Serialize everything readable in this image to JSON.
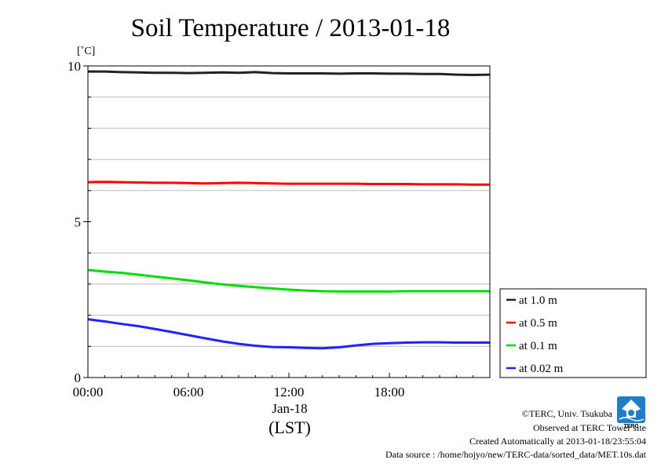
{
  "chart_data": {
    "type": "line",
    "title": "Soil Temperature / 2013-01-18",
    "ylabel": "[˚C]",
    "ylim": [
      0,
      10
    ],
    "y_ticks": [
      {
        "value": 0,
        "label": "0"
      },
      {
        "value": 5,
        "label": "5"
      },
      {
        "value": 10,
        "label": "10"
      }
    ],
    "y_grid": [
      1,
      2,
      3,
      4,
      6,
      7,
      8,
      9
    ],
    "xlim": [
      0,
      24
    ],
    "x_ticks": [
      {
        "value": 0,
        "label": "00:00"
      },
      {
        "value": 6,
        "label": "06:00"
      },
      {
        "value": 12,
        "label": "12:00"
      },
      {
        "value": 18,
        "label": "18:00"
      }
    ],
    "date_label": "Jan-18",
    "xlabel": "(LST)",
    "grid": true,
    "legend_position": "right",
    "series": [
      {
        "name": "at 1.0 m",
        "color": "#222222",
        "x": [
          0,
          1,
          2,
          3,
          4,
          5,
          6,
          7,
          8,
          9,
          10,
          11,
          12,
          13,
          14,
          15,
          16,
          17,
          18,
          19,
          20,
          21,
          22,
          23,
          24
        ],
        "y": [
          9.82,
          9.82,
          9.8,
          9.79,
          9.78,
          9.78,
          9.77,
          9.78,
          9.79,
          9.78,
          9.8,
          9.77,
          9.76,
          9.76,
          9.76,
          9.75,
          9.76,
          9.76,
          9.75,
          9.75,
          9.74,
          9.74,
          9.72,
          9.71,
          9.72
        ]
      },
      {
        "name": "at 0.5 m",
        "color": "#ff0000",
        "x": [
          0,
          1,
          2,
          3,
          4,
          5,
          6,
          7,
          8,
          9,
          10,
          11,
          12,
          13,
          14,
          15,
          16,
          17,
          18,
          19,
          20,
          21,
          22,
          23,
          24
        ],
        "y": [
          6.27,
          6.28,
          6.27,
          6.26,
          6.25,
          6.25,
          6.24,
          6.23,
          6.24,
          6.25,
          6.24,
          6.23,
          6.22,
          6.22,
          6.22,
          6.22,
          6.22,
          6.21,
          6.21,
          6.21,
          6.2,
          6.2,
          6.2,
          6.19,
          6.19
        ]
      },
      {
        "name": "at 0.1 m",
        "color": "#00dd00",
        "x": [
          0,
          1,
          2,
          3,
          4,
          5,
          6,
          7,
          8,
          9,
          10,
          11,
          12,
          13,
          14,
          15,
          16,
          17,
          18,
          19,
          20,
          21,
          22,
          23,
          24
        ],
        "y": [
          3.45,
          3.4,
          3.36,
          3.3,
          3.24,
          3.18,
          3.12,
          3.05,
          2.99,
          2.94,
          2.9,
          2.86,
          2.82,
          2.79,
          2.77,
          2.76,
          2.76,
          2.76,
          2.76,
          2.77,
          2.77,
          2.77,
          2.77,
          2.77,
          2.77
        ]
      },
      {
        "name": "at 0.02 m",
        "color": "#2222ff",
        "x": [
          0,
          1,
          2,
          3,
          4,
          5,
          6,
          7,
          8,
          9,
          10,
          11,
          12,
          13,
          14,
          15,
          16,
          17,
          18,
          19,
          20,
          21,
          22,
          23,
          24
        ],
        "y": [
          1.87,
          1.8,
          1.72,
          1.65,
          1.56,
          1.46,
          1.36,
          1.26,
          1.16,
          1.08,
          1.02,
          0.98,
          0.97,
          0.95,
          0.94,
          0.97,
          1.03,
          1.08,
          1.1,
          1.12,
          1.13,
          1.13,
          1.12,
          1.12,
          1.12
        ]
      }
    ]
  },
  "credits": {
    "copyright": "©TERC, Univ. Tsukuba",
    "observed": "Observed at TERC Tower site",
    "created": "Created Automatically at 2013-01-18/23:55:04",
    "source": "Data source : /home/hojyo/new/TERC-data/sorted_data/MET.10s.dat",
    "logo_text": "TERC"
  }
}
